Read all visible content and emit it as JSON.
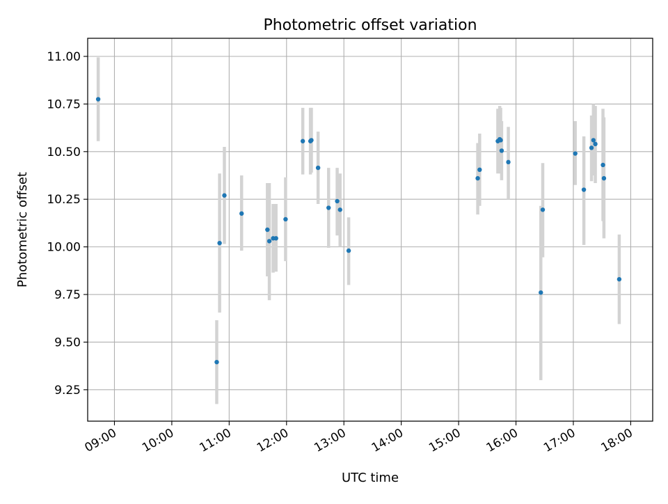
{
  "chart_data": {
    "type": "scatter",
    "title": "Photometric offset variation",
    "xlabel": "UTC time",
    "ylabel": "Photometric offset",
    "grid": true,
    "xlim": [
      "08:32",
      "18:23"
    ],
    "ylim": [
      9.085,
      11.095
    ],
    "x_ticks": [
      "09:00",
      "10:00",
      "11:00",
      "12:00",
      "13:00",
      "14:00",
      "15:00",
      "16:00",
      "17:00",
      "18:00"
    ],
    "y_ticks": [
      "9.25",
      "9.50",
      "9.75",
      "10.00",
      "10.25",
      "10.50",
      "10.75",
      "11.00"
    ],
    "colors": {
      "point": "#1f77b4",
      "errorbar": "#d3d3d3",
      "grid": "#b0b0b0"
    },
    "points": [
      {
        "x": "08:43",
        "y": 10.775,
        "lo": 10.555,
        "hi": 10.995
      },
      {
        "x": "10:47",
        "y": 9.395,
        "lo": 9.175,
        "hi": 9.615
      },
      {
        "x": "10:50",
        "y": 10.02,
        "lo": 9.655,
        "hi": 10.385
      },
      {
        "x": "10:55",
        "y": 10.27,
        "lo": 10.015,
        "hi": 10.525
      },
      {
        "x": "11:13",
        "y": 10.175,
        "lo": 9.98,
        "hi": 10.375
      },
      {
        "x": "11:40",
        "y": 10.09,
        "lo": 9.845,
        "hi": 10.335
      },
      {
        "x": "11:42",
        "y": 10.03,
        "lo": 9.72,
        "hi": 10.335
      },
      {
        "x": "11:46",
        "y": 10.045,
        "lo": 9.865,
        "hi": 10.225
      },
      {
        "x": "11:49",
        "y": 10.045,
        "lo": 9.87,
        "hi": 10.225
      },
      {
        "x": "11:59",
        "y": 10.145,
        "lo": 9.925,
        "hi": 10.365
      },
      {
        "x": "12:17",
        "y": 10.555,
        "lo": 10.38,
        "hi": 10.73
      },
      {
        "x": "12:25",
        "y": 10.555,
        "lo": 10.38,
        "hi": 10.73
      },
      {
        "x": "12:26",
        "y": 10.56,
        "lo": 10.39,
        "hi": 10.73
      },
      {
        "x": "12:33",
        "y": 10.415,
        "lo": 10.225,
        "hi": 10.605
      },
      {
        "x": "12:44",
        "y": 10.205,
        "lo": 9.995,
        "hi": 10.415
      },
      {
        "x": "12:53",
        "y": 10.24,
        "lo": 10.06,
        "hi": 10.415
      },
      {
        "x": "12:56",
        "y": 10.195,
        "lo": 10.0,
        "hi": 10.385
      },
      {
        "x": "13:05",
        "y": 9.98,
        "lo": 9.8,
        "hi": 10.155
      },
      {
        "x": "15:20",
        "y": 10.36,
        "lo": 10.17,
        "hi": 10.545
      },
      {
        "x": "15:22",
        "y": 10.405,
        "lo": 10.215,
        "hi": 10.595
      },
      {
        "x": "15:41",
        "y": 10.555,
        "lo": 10.385,
        "hi": 10.725
      },
      {
        "x": "15:43",
        "y": 10.565,
        "lo": 10.39,
        "hi": 10.74
      },
      {
        "x": "15:44",
        "y": 10.56,
        "lo": 10.385,
        "hi": 10.73
      },
      {
        "x": "15:45",
        "y": 10.505,
        "lo": 10.35,
        "hi": 10.66
      },
      {
        "x": "15:52",
        "y": 10.445,
        "lo": 10.25,
        "hi": 10.63
      },
      {
        "x": "16:26",
        "y": 9.76,
        "lo": 9.3,
        "hi": 10.215
      },
      {
        "x": "16:28",
        "y": 10.195,
        "lo": 9.945,
        "hi": 10.44
      },
      {
        "x": "17:02",
        "y": 10.49,
        "lo": 10.325,
        "hi": 10.66
      },
      {
        "x": "17:11",
        "y": 10.3,
        "lo": 10.01,
        "hi": 10.58
      },
      {
        "x": "17:19",
        "y": 10.52,
        "lo": 10.345,
        "hi": 10.69
      },
      {
        "x": "17:21",
        "y": 10.56,
        "lo": 10.375,
        "hi": 10.75
      },
      {
        "x": "17:23",
        "y": 10.54,
        "lo": 10.335,
        "hi": 10.74
      },
      {
        "x": "17:31",
        "y": 10.43,
        "lo": 10.135,
        "hi": 10.725
      },
      {
        "x": "17:32",
        "y": 10.36,
        "lo": 10.045,
        "hi": 10.68
      },
      {
        "x": "17:48",
        "y": 9.83,
        "lo": 9.595,
        "hi": 10.065
      }
    ]
  }
}
